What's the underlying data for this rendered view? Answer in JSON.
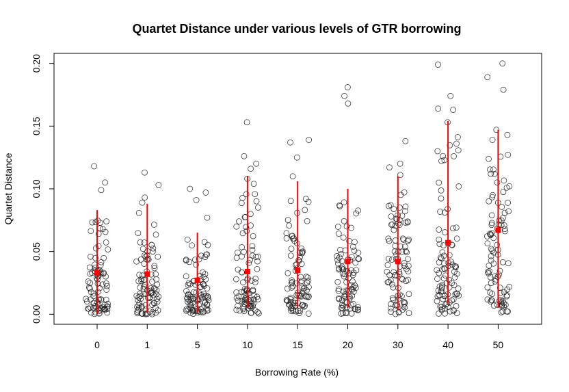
{
  "chart_data": {
    "type": "scatter",
    "title": "Quartet Distance under various levels of GTR borrowing",
    "xlabel": "Borrowing Rate (%)",
    "ylabel": "Quartet Distance",
    "categories": [
      "0",
      "1",
      "5",
      "10",
      "15",
      "20",
      "30",
      "40",
      "50"
    ],
    "ylim": [
      -0.008,
      0.208
    ],
    "yticks": [
      "0.00",
      "0.05",
      "0.10",
      "0.15",
      "0.20"
    ],
    "ytick_values": [
      0.0,
      0.05,
      0.1,
      0.15,
      0.2
    ],
    "summary": [
      {
        "category": "0",
        "mean": 0.033,
        "lower": 0.0,
        "upper": 0.083
      },
      {
        "category": "1",
        "mean": 0.032,
        "lower": 0.001,
        "upper": 0.088
      },
      {
        "category": "5",
        "mean": 0.027,
        "lower": 0.001,
        "upper": 0.065
      },
      {
        "category": "10",
        "mean": 0.034,
        "lower": 0.005,
        "upper": 0.11
      },
      {
        "category": "15",
        "mean": 0.035,
        "lower": 0.005,
        "upper": 0.106
      },
      {
        "category": "20",
        "mean": 0.042,
        "lower": 0.005,
        "upper": 0.1
      },
      {
        "category": "30",
        "mean": 0.042,
        "lower": 0.003,
        "upper": 0.11
      },
      {
        "category": "40",
        "mean": 0.057,
        "lower": 0.008,
        "upper": 0.154
      },
      {
        "category": "50",
        "mean": 0.067,
        "lower": 0.005,
        "upper": 0.147
      }
    ],
    "outliers": [
      [
        0.118,
        0.105,
        0.099
      ],
      [
        0.113,
        0.103,
        0.093,
        0.089
      ],
      [
        0.1,
        0.097,
        0.091,
        0.077
      ],
      [
        0.153,
        0.126,
        0.12,
        0.116,
        0.108,
        0.104
      ],
      [
        0.139,
        0.137,
        0.125,
        0.11
      ],
      [
        0.181,
        0.174,
        0.168
      ],
      [
        0.138,
        0.12,
        0.117,
        0.111
      ],
      [
        0.199,
        0.174,
        0.164,
        0.163,
        0.153,
        0.136,
        0.13
      ],
      [
        0.2,
        0.189,
        0.179,
        0.147,
        0.143,
        0.139
      ]
    ],
    "point_colors": {
      "points": "#2b2b2b",
      "mean_and_interval": "#ff0000"
    }
  }
}
